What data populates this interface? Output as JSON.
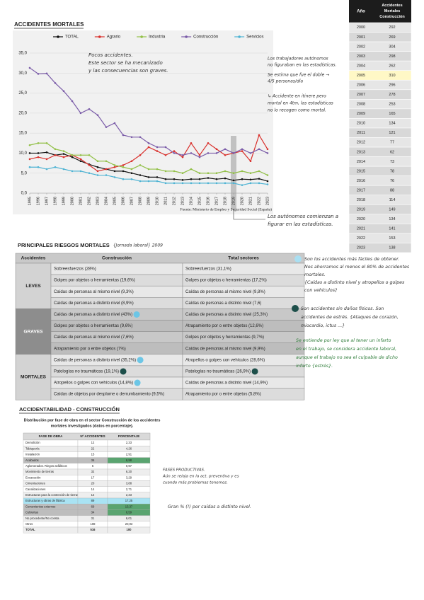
{
  "heading": "ACCIDENTES MORTALES",
  "chart_data": {
    "type": "line",
    "x": [
      1995,
      1996,
      1997,
      1998,
      1999,
      2000,
      2001,
      2002,
      2003,
      2004,
      2005,
      2006,
      2007,
      2008,
      2009,
      2010,
      2011,
      2012,
      2013,
      2014,
      2015,
      2016,
      2017,
      2018,
      2019,
      2020,
      2021,
      2022,
      2023
    ],
    "xlim": [
      1995,
      2023
    ],
    "ylim": [
      0,
      35
    ],
    "yticks": [
      {
        "value": 0,
        "label": "0,0"
      },
      {
        "value": 5,
        "label": "5,0"
      },
      {
        "value": 10,
        "label": "10,0"
      },
      {
        "value": 15,
        "label": "15,0"
      },
      {
        "value": 20,
        "label": "20,0"
      },
      {
        "value": 25,
        "label": "25,0"
      },
      {
        "value": 30,
        "label": "30,0"
      },
      {
        "value": 35,
        "label": "35,0"
      }
    ],
    "grid": true,
    "highlight_x": 2019,
    "series": [
      {
        "name": "TOTAL",
        "color": "#111111",
        "values": [
          10,
          10,
          10.2,
          9.5,
          9.8,
          9,
          8,
          7.2,
          6.5,
          6,
          5.5,
          5.5,
          5,
          4.5,
          4,
          4,
          3.5,
          3.5,
          3.3,
          3.5,
          3.5,
          3.8,
          3.5,
          3.7,
          3.2,
          3.5,
          3.4,
          3.6,
          3
        ]
      },
      {
        "name": "Agrario",
        "color": "#d9302c",
        "values": [
          8.5,
          9,
          8.5,
          9.5,
          9,
          9.5,
          8.5,
          7,
          5.5,
          6,
          6.5,
          7,
          8,
          9.5,
          11.5,
          10.5,
          9.5,
          10.5,
          9,
          12.5,
          9.5,
          12.5,
          11,
          9.5,
          10,
          10.5,
          8,
          14.5,
          11
        ]
      },
      {
        "name": "Industria",
        "color": "#92c047",
        "values": [
          12,
          12.5,
          12.5,
          11,
          10.5,
          9.5,
          9.5,
          9.5,
          8,
          8,
          7,
          6.5,
          6,
          7,
          6,
          6,
          5.5,
          5.5,
          5,
          6,
          5,
          5,
          5,
          5.5,
          5,
          5.5,
          5,
          5.5,
          4.5
        ]
      },
      {
        "name": "Construcción",
        "color": "#7a5ba8",
        "values": [
          31.3,
          29.8,
          29.9,
          27.5,
          25.5,
          23,
          20,
          21,
          19.5,
          16.5,
          17.5,
          14.5,
          14,
          14,
          12.5,
          11.5,
          11.5,
          10,
          9.5,
          10,
          9,
          10,
          10,
          11,
          10,
          11,
          10,
          11,
          10
        ]
      },
      {
        "name": "Servicios",
        "color": "#4eb3d3",
        "values": [
          6.5,
          6.5,
          6,
          6.5,
          6,
          5.5,
          5.5,
          5,
          4.5,
          4.5,
          4,
          3.5,
          3.5,
          3,
          3,
          3,
          2.5,
          2.5,
          2.5,
          2.5,
          2.5,
          2.5,
          2.5,
          2.5,
          2.5,
          2,
          2.5,
          2.5,
          2.2
        ]
      }
    ],
    "source": "Fuente: Ministerio de Empleo y Seguridad Social (España)",
    "annotations": [
      [
        "Pocos accidentes.",
        "Este sector se ha mecanizado",
        "y las consecuencias son graves."
      ],
      [
        "Los autónomos comienzan a",
        "figurar en las estadísticas."
      ]
    ]
  },
  "side_notes": [
    [
      "Los trabajadores autónomos",
      "no figuraban en las estadísticas."
    ],
    [
      "Se estima que fue el doble →",
      "4/5 personas/día"
    ],
    [
      "↳ Accidente en itinere pero",
      "mortal en 4tm, las estadísticas",
      "no lo recogen como mortal."
    ]
  ],
  "year_table": {
    "header": [
      "Año",
      "Accidentes Mortales Construcción"
    ],
    "rows": [
      [
        2000,
        292
      ],
      [
        2001,
        269
      ],
      [
        2002,
        304
      ],
      [
        2003,
        298
      ],
      [
        2004,
        262
      ],
      [
        2005,
        310
      ],
      [
        2006,
        296
      ],
      [
        2007,
        278
      ],
      [
        2008,
        253
      ],
      [
        2009,
        165
      ],
      [
        2010,
        134
      ],
      [
        2011,
        121
      ],
      [
        2012,
        77
      ],
      [
        2013,
        62
      ],
      [
        2014,
        73
      ],
      [
        2015,
        78
      ],
      [
        2016,
        76
      ],
      [
        2017,
        88
      ],
      [
        2018,
        114
      ],
      [
        2019,
        149
      ],
      [
        2020,
        134
      ],
      [
        2021,
        141
      ],
      [
        2022,
        153
      ],
      [
        2023,
        138
      ]
    ]
  },
  "risks": {
    "title": "PRINCIPALES RIESGOS MORTALES",
    "title_note": "{Jornada laboral} 2009",
    "header": [
      "Accidentes",
      "Construcción",
      "Total sectores"
    ],
    "groups": [
      {
        "name": "LEVES",
        "rows": [
          [
            "Sobreesfuerzos (28%)",
            "Sobreesfuerzos (31,1%)"
          ],
          [
            "Golpes por objetos o herramientas (19,6%)",
            "Golpes por objetos o herramientas (17,2%)"
          ],
          [
            "Caídas de personas al mismo nivel (9,3%)",
            "Caídas de personas al mismo nivel (9,8%)"
          ],
          [
            "Caídas de personas a distinto nivel (8,9%)",
            "Caídas de personas a distinto nivel (7,6)"
          ]
        ]
      },
      {
        "name": "GRAVES",
        "rows": [
          [
            "Caídas de personas a distinto nivel (43%)",
            "Caídas de personas a distinto nivel (25,3%)"
          ],
          [
            "Golpes por objetos o herramientas (9,6%)",
            "Atrapamiento por o entre objetos (12,6%)"
          ],
          [
            "Caídas de personas al mismo nivel (7,6%)",
            "Golpes por objetos y herramientas (9,7%)"
          ],
          [
            "Atrapamiento por o entre objetos (7%)",
            "Caídas de personas al mismo nivel (9,9%)"
          ]
        ]
      },
      {
        "name": "MORTALES",
        "rows": [
          [
            "Caídas de personas a distinto nivel (35,2%)",
            "Atropellos o golpes con vehículos (28,6%)"
          ],
          [
            "Patologías no traumáticas (19,1%)",
            "Patologías no traumáticas (26,9%)"
          ],
          [
            "Atropellos o golpes con vehículos (14,8%)",
            "Caídas de personas a distinto nivel (14,9%)"
          ],
          [
            "Caídas de objetos por desplome o derrumbamiento (9,5%)",
            "Atrapamiento por o entre objetos (5,8%)"
          ]
        ]
      }
    ],
    "notes": [
      [
        "Son los accidentes más fáciles de obtener.",
        "Nos ahorramos al menos el 80% de accidentes",
        "mortales.",
        "{Caídas a distinto nivel y atropellos o golpes",
        "con vehículos}"
      ],
      [
        "Son accidentes sin daños físicos. Son",
        "accidentes de estrés. {Ataques de corazón,",
        "miocardio, ictus ...}"
      ],
      [
        "Se entiende por ley que al tener un infarto",
        "en el trabajo, se considera accidente laboral,",
        "aunque el trabajo no sea el culpable de dicho",
        "infarto {estrés}."
      ]
    ]
  },
  "phase": {
    "title": "ACCIDENTABILIDAD - CONSTRUCCIÓN",
    "subtitle": [
      "Distribución por fase de obra en el sector Construcción de los accidentes",
      "mortales investigados (datos en porcentaje)."
    ],
    "header": [
      "FASE DE OBRA",
      "Nº ACCIDENTES",
      "PORCENTAJE"
    ],
    "rows": [
      [
        "Demolición",
        12,
        "2,33"
      ],
      [
        "Tabiquería",
        22,
        "4,26"
      ],
      [
        "Instalación",
        15,
        "2,91"
      ],
      [
        "Acabados",
        36,
        "6,98"
      ],
      [
        "Aglomerados. Riegos asfálticos",
        5,
        "0,97"
      ],
      [
        "Movimiento de tierras",
        32,
        "6,20"
      ],
      [
        "Excavación",
        17,
        "3,29"
      ],
      [
        "Cimentaciones",
        20,
        "3,88"
      ],
      [
        "Canalizaciones",
        14,
        "2,71"
      ],
      [
        "Estructuras para la contención de tierras",
        12,
        "2,33"
      ],
      [
        "Estructuras y obras de fábrica",
        89,
        "17,25"
      ],
      [
        "Cerramientos externos",
        69,
        "13,37"
      ],
      [
        "Cubiertas",
        34,
        "6,59"
      ],
      [
        "No procedente/No consta",
        31,
        "6,01"
      ],
      [
        "Otros",
        108,
        "20,93"
      ],
      [
        "TOTAL",
        516,
        100
      ]
    ],
    "notes": [
      [
        "FASES PRODUCTIVAS.",
        "Aún se relaja en la act. preventiva y es",
        "cuando más problemas tenemos."
      ],
      [
        "Gran % (!) por caídas a distinto nivel."
      ]
    ]
  }
}
